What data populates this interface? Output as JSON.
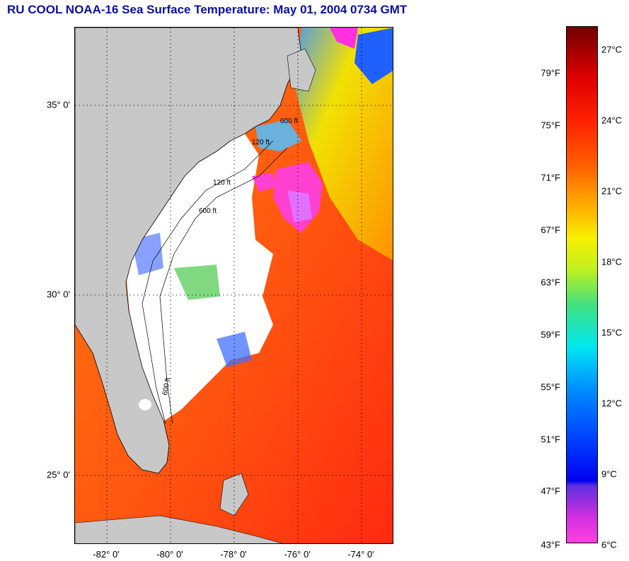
{
  "title": "RU COOL  NOAA-16  Sea Surface Temperature:  May 01, 2004 0734 GMT",
  "map": {
    "lat_labels": [
      "35° 0'",
      "30° 0'",
      "25° 0'"
    ],
    "lon_labels": [
      "-82° 0'",
      "-80° 0'",
      "-78° 0'",
      "-76° 0'",
      "-74° 0'"
    ],
    "contour_labels": [
      "120 ft",
      "600 ft",
      "120 ft",
      "600 ft",
      "600 ft"
    ],
    "colors": {
      "land": "#c8c8c8",
      "cloud": "#ffffff",
      "warm_water": "#ff3010",
      "gulf_stream": "#ff6a00",
      "cold_water": "#ff30e0"
    }
  },
  "colorbar": {
    "fahrenheit_ticks": [
      "79°F",
      "75°F",
      "71°F",
      "67°F",
      "63°F",
      "59°F",
      "55°F",
      "51°F",
      "47°F",
      "43°F"
    ],
    "celsius_ticks": [
      "27°C",
      "24°C",
      "21°C",
      "18°C",
      "15°C",
      "12°C",
      "9°C",
      "6°C"
    ]
  }
}
